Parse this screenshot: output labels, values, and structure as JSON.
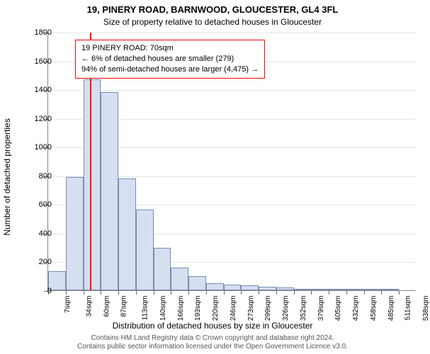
{
  "title_main": "19, PINERY ROAD, BARNWOOD, GLOUCESTER, GL4 3FL",
  "title_sub": "Size of property relative to detached houses in Gloucester",
  "y_axis": {
    "label": "Number of detached properties",
    "min": 0,
    "max": 1800,
    "step": 200
  },
  "x_axis": {
    "label": "Distribution of detached houses by size in Gloucester",
    "ticks": [
      "7sqm",
      "34sqm",
      "60sqm",
      "87sqm",
      "113sqm",
      "140sqm",
      "166sqm",
      "193sqm",
      "220sqm",
      "246sqm",
      "273sqm",
      "299sqm",
      "326sqm",
      "352sqm",
      "379sqm",
      "405sqm",
      "432sqm",
      "458sqm",
      "485sqm",
      "511sqm",
      "538sqm"
    ]
  },
  "histogram": {
    "type": "histogram",
    "bin_heights": [
      135,
      790,
      1470,
      1380,
      780,
      560,
      295,
      160,
      100,
      50,
      40,
      35,
      25,
      22,
      10,
      8,
      9,
      5,
      4,
      3,
      0
    ],
    "bar_fill": "#d6dff0",
    "bar_border": "#7a8db5"
  },
  "reference": {
    "value_sqm": 70,
    "color": "#ff0000"
  },
  "annotation": {
    "line1": "19 PINERY ROAD: 70sqm",
    "line2": "← 6% of detached houses are smaller (279)",
    "line3": "94% of semi-detached houses are larger (4,475) →",
    "border_color": "#ff0000"
  },
  "attribution": {
    "line1": "Contains HM Land Registry data © Crown copyright and database right 2024.",
    "line2": "Contains public sector information licensed under the Open Government Licence v3.0."
  },
  "colors": {
    "grid": "#e6e6e6",
    "axis": "#888888",
    "tick": "#666666",
    "background": "#ffffff"
  }
}
